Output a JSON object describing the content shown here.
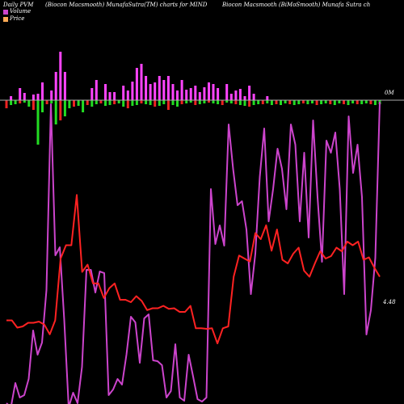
{
  "header": {
    "left": "Daily PVM",
    "center": "(Biocon Macsmooth) MunafaSutra(TM) charts for MIND",
    "right": "Biocon Macsmooth (BiMoSmooth) Munafa Sutra ch"
  },
  "legend": {
    "volume_label": "Volume",
    "price_label": "Price",
    "volume_color": "#cc44cc",
    "price_color": "#ffaa55"
  },
  "colors": {
    "volume_line": "#cc44cc",
    "price_line": "#ff2222",
    "bar_up": "#ff44ff",
    "bar_down_green": "#22dd22",
    "bar_down_red": "#ee2222",
    "zero_line": "#aaaaaa"
  },
  "chart_data": {
    "type": "line",
    "zero_label": "0M",
    "last_price_label": "4.48",
    "volume_line": [
      -375,
      -380,
      -350,
      -368,
      -365,
      -345,
      -285,
      -315,
      -300,
      -235,
      -5,
      -192,
      -182,
      -272,
      -380,
      -362,
      -375,
      -330,
      -210,
      -210,
      -238,
      -212,
      -214,
      -365,
      -358,
      -345,
      -352,
      -315,
      -268,
      -275,
      -325,
      -270,
      -265,
      -322,
      -323,
      -328,
      -368,
      -360,
      -302,
      -368,
      -372,
      -315,
      -342,
      -370,
      -373,
      -368,
      -110,
      -178,
      -155,
      -180,
      -30,
      -85,
      -130,
      -125,
      -160,
      -240,
      -190,
      -95,
      -35,
      -150,
      -110,
      -60,
      -85,
      -135,
      -30,
      -55,
      -150,
      -65,
      -170,
      -25,
      -120,
      -200,
      -50,
      -65,
      -40,
      -110,
      -240,
      -20,
      -90,
      -55,
      -120,
      -290,
      -260,
      -195,
      -2
    ],
    "volume_bars_up": [
      null,
      5,
      null,
      15,
      9,
      null,
      7,
      8,
      22,
      null,
      12,
      35,
      60,
      35,
      null,
      null,
      null,
      null,
      null,
      15,
      25,
      null,
      20,
      10,
      10,
      null,
      18,
      12,
      23,
      40,
      45,
      30,
      20,
      22,
      30,
      25,
      30,
      20,
      12,
      25,
      13,
      15,
      18,
      10,
      16,
      22,
      20,
      15,
      null,
      20,
      8,
      12,
      14,
      5,
      18,
      8,
      null,
      null,
      5,
      null,
      null,
      null,
      null,
      null,
      null,
      null,
      null,
      null,
      null,
      null,
      null,
      null,
      null,
      null,
      null,
      null,
      null,
      null,
      null,
      null,
      null,
      null,
      null,
      null
    ],
    "volume_bars_down": [
      -10,
      -6,
      -5,
      -4,
      -3,
      -8,
      -12,
      -55,
      -15,
      -5,
      -4,
      -30,
      -25,
      -20,
      -10,
      -8,
      -7,
      -15,
      -6,
      -8,
      -5,
      -4,
      -7,
      -6,
      -5,
      -4,
      -8,
      -10,
      -7,
      -6,
      -4,
      -5,
      -6,
      -8,
      -7,
      -5,
      -12,
      -6,
      -8,
      -5,
      -4,
      -3,
      -6,
      -5,
      -4,
      -3,
      -4,
      -5,
      -6,
      -3,
      -4,
      -5,
      -6,
      -7,
      -8,
      -6,
      -5,
      -5,
      -4,
      -6,
      -5,
      -6,
      -4,
      -5,
      -6,
      -5,
      -4,
      -5,
      -4,
      -6,
      -5,
      -4,
      -5,
      -6,
      -4,
      -5,
      -6,
      -4,
      -5,
      -5,
      -4,
      -5,
      -6,
      -5
    ],
    "price_line": [
      4.48,
      4.48,
      4.36,
      4.38,
      4.44,
      4.44,
      4.46,
      4.41,
      4.25,
      4.48,
      5.5,
      5.72,
      5.72,
      6.55,
      5.28,
      5.4,
      5.09,
      5.09,
      4.85,
      5.01,
      5.09,
      4.82,
      4.82,
      4.78,
      4.88,
      4.8,
      4.65,
      4.68,
      4.68,
      4.72,
      4.67,
      4.68,
      4.62,
      4.62,
      4.72,
      4.35,
      4.35,
      4.34,
      4.35,
      4.1,
      4.35,
      4.38,
      5.2,
      5.55,
      5.5,
      5.45,
      5.92,
      5.82,
      6.05,
      5.63,
      5.98,
      5.48,
      5.42,
      5.58,
      5.68,
      5.3,
      5.2,
      5.42,
      5.62,
      5.5,
      5.54,
      5.68,
      5.62,
      5.78,
      5.72,
      5.78,
      5.48,
      5.52,
      5.35,
      5.2
    ],
    "y_range_price": [
      3.5,
      7.5
    ],
    "grid": false
  }
}
